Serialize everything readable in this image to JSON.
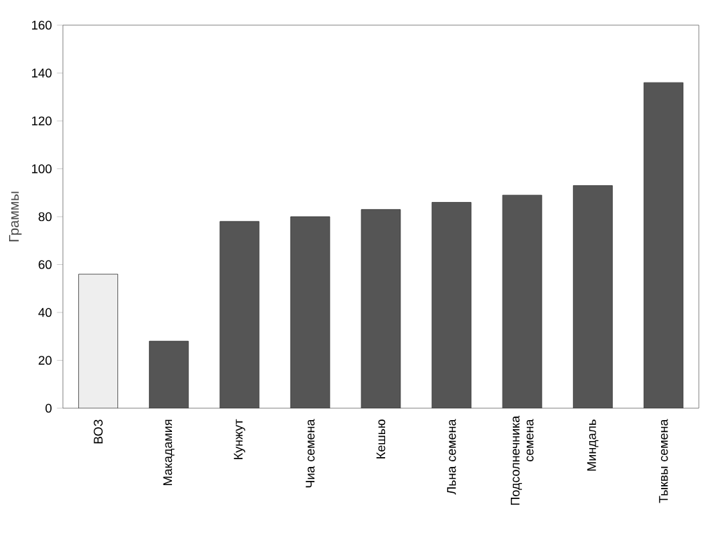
{
  "chart_data": {
    "type": "bar",
    "ylabel": "Граммы",
    "categories": [
      "ВОЗ",
      "Макадамия",
      "Кунжут",
      "Чиа семена",
      "Кешью",
      "Льна семена",
      "Подсолнечника семена",
      "Миндаль",
      "Тыквы семена"
    ],
    "values": [
      56,
      28,
      78,
      80,
      83,
      86,
      89,
      93,
      136
    ],
    "colors": [
      "#eeeeee",
      "#555555",
      "#555555",
      "#555555",
      "#555555",
      "#555555",
      "#555555",
      "#555555",
      "#555555"
    ],
    "ylim": [
      0,
      160
    ],
    "yticks": [
      0,
      20,
      40,
      60,
      80,
      100,
      120,
      140,
      160
    ],
    "grid": false
  }
}
